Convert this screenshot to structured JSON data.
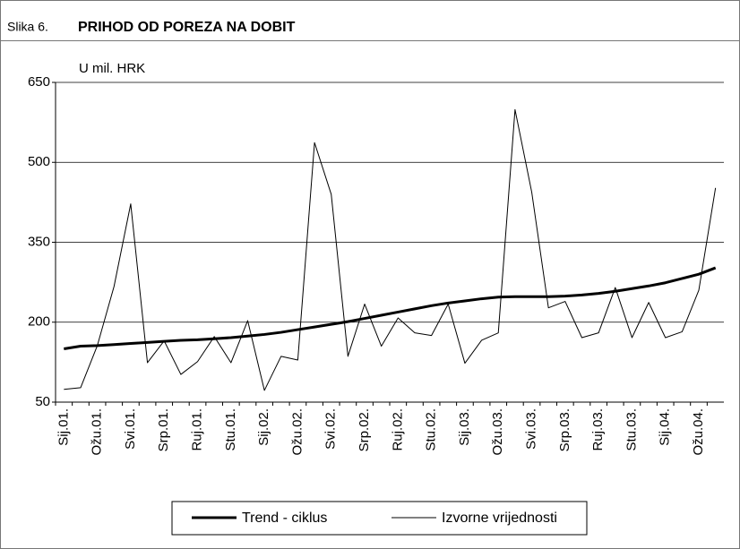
{
  "chart_data": {
    "type": "line",
    "figure_label": "Slika 6.",
    "title": "PRIHOD OD POREZA NA DOBIT",
    "y_label": "U mil. HRK",
    "categories": [
      "Sij.01.",
      null,
      "Ožu.01.",
      null,
      "Svi.01.",
      null,
      "Srp.01.",
      null,
      "Ruj.01.",
      null,
      "Stu.01.",
      null,
      "Sij.02.",
      null,
      "Ožu.02.",
      null,
      "Svi.02.",
      null,
      "Srp.02.",
      null,
      "Ruj.02.",
      null,
      "Stu.02.",
      null,
      "Sij.03.",
      null,
      "Ožu.03.",
      null,
      "Svi.03.",
      null,
      "Srp.03.",
      null,
      "Ruj.03.",
      null,
      "Stu.03.",
      null,
      "Sij.04.",
      null,
      "Ožu.04.",
      null
    ],
    "series": [
      {
        "name": "Trend - ciklus",
        "color": "#000000",
        "width": 3,
        "values": [
          150,
          155,
          156,
          158,
          160,
          162,
          164,
          166,
          167,
          169,
          171,
          174,
          177,
          181,
          186,
          191,
          196,
          201,
          207,
          213,
          219,
          225,
          231,
          236,
          240,
          244,
          247,
          248,
          248,
          248,
          249,
          251,
          254,
          258,
          263,
          268,
          274,
          282,
          290,
          302
        ]
      },
      {
        "name": "Izvorne vrijednosti",
        "color": "#000000",
        "width": 1,
        "values": [
          74,
          77,
          156,
          267,
          422,
          124,
          165,
          102,
          126,
          173,
          124,
          203,
          72,
          136,
          129,
          537,
          440,
          136,
          234,
          155,
          208,
          180,
          175,
          234,
          123,
          166,
          180,
          599,
          444,
          227,
          239,
          171,
          180,
          265,
          171,
          237,
          171,
          182,
          260,
          452
        ]
      }
    ],
    "ylim": [
      50,
      650
    ],
    "yticks": [
      50,
      200,
      350,
      500,
      650
    ],
    "grid": true,
    "legend": "bottom"
  }
}
